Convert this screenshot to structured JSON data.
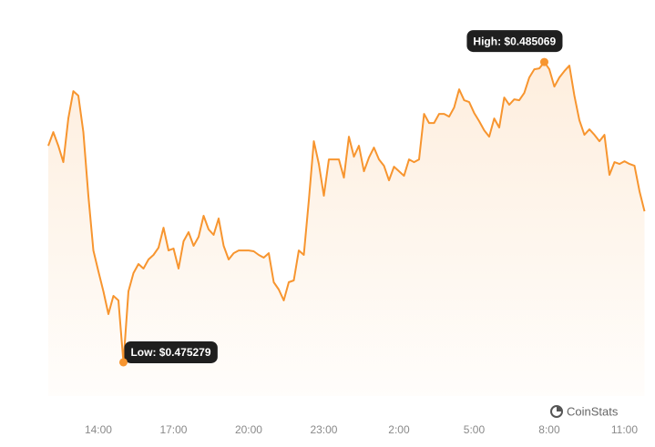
{
  "chart_data": {
    "type": "area",
    "x": [
      12.0,
      12.2,
      12.4,
      12.6,
      12.8,
      13.0,
      13.2,
      13.4,
      13.6,
      13.8,
      14.0,
      14.2,
      14.4,
      14.6,
      14.8,
      15.0,
      15.2,
      15.4,
      15.6,
      15.8,
      16.0,
      16.2,
      16.4,
      16.6,
      16.8,
      17.0,
      17.2,
      17.4,
      17.6,
      17.8,
      18.0,
      18.2,
      18.4,
      18.6,
      18.8,
      19.0,
      19.2,
      19.4,
      19.6,
      19.8,
      20.0,
      20.2,
      20.4,
      20.6,
      20.8,
      21.0,
      21.2,
      21.4,
      21.6,
      21.8,
      22.0,
      22.2,
      22.4,
      22.6,
      22.8,
      23.0,
      23.2,
      23.4,
      23.6,
      23.8,
      24.0,
      24.2,
      24.4,
      24.6,
      24.8,
      25.0,
      25.2,
      25.4,
      25.6,
      25.8,
      26.0,
      26.2,
      26.4,
      26.6,
      26.8,
      27.0,
      27.2,
      27.4,
      27.6,
      27.8,
      28.0,
      28.2,
      28.4,
      28.6,
      28.8,
      29.0,
      29.2,
      29.4,
      29.6,
      29.8,
      30.0,
      30.2,
      30.4,
      30.6,
      30.8,
      31.0,
      31.2,
      31.4,
      31.6,
      31.8,
      32.0,
      32.2,
      32.4,
      32.6,
      32.8,
      33.0,
      33.2,
      33.4,
      33.6,
      33.8,
      34.0,
      34.2,
      34.4,
      34.6,
      34.8,
      35.0,
      35.2,
      35.4,
      35.6,
      35.8
    ],
    "values": [
      0.482339,
      0.482784,
      0.482339,
      0.481805,
      0.483229,
      0.48412,
      0.483971,
      0.482784,
      0.480708,
      0.478927,
      0.478245,
      0.477592,
      0.47685,
      0.477444,
      0.477296,
      0.475279,
      0.477592,
      0.478186,
      0.478482,
      0.478334,
      0.478631,
      0.478779,
      0.479016,
      0.479669,
      0.478927,
      0.478987,
      0.478334,
      0.479224,
      0.479521,
      0.479076,
      0.479372,
      0.480055,
      0.47961,
      0.479432,
      0.479966,
      0.479076,
      0.478631,
      0.478838,
      0.478927,
      0.478927,
      0.478927,
      0.478898,
      0.478779,
      0.47869,
      0.478838,
      0.477889,
      0.477652,
      0.477296,
      0.477889,
      0.477948,
      0.478927,
      0.478779,
      0.480559,
      0.482488,
      0.481746,
      0.480708,
      0.481894,
      0.481894,
      0.481894,
      0.481301,
      0.482636,
      0.481983,
      0.482339,
      0.481509,
      0.481954,
      0.48228,
      0.481894,
      0.481687,
      0.481212,
      0.481657,
      0.481509,
      0.48136,
      0.481894,
      0.481805,
      0.481894,
      0.483378,
      0.483081,
      0.483081,
      0.483378,
      0.483378,
      0.483289,
      0.483586,
      0.484179,
      0.483823,
      0.483764,
      0.483408,
      0.48314,
      0.482844,
      0.482636,
      0.483229,
      0.482933,
      0.483912,
      0.483675,
      0.483853,
      0.483823,
      0.48406,
      0.484565,
      0.484832,
      0.484861,
      0.485069,
      0.484832,
      0.484268,
      0.484565,
      0.484772,
      0.48495,
      0.483971,
      0.48317,
      0.482695,
      0.482873,
      0.482695,
      0.482488,
      0.482695,
      0.48139,
      0.481805,
      0.481746,
      0.481835,
      0.481746,
      0.481687,
      0.480856,
      0.480203
    ],
    "color": "#f7952f",
    "xlim": [
      11.95,
      35.95
    ],
    "xticks": [
      {
        "value": 14,
        "label": "14:00"
      },
      {
        "value": 17,
        "label": "17:00"
      },
      {
        "value": 20,
        "label": "20:00"
      },
      {
        "value": 23,
        "label": "23:00"
      },
      {
        "value": 26,
        "label": "2:00"
      },
      {
        "value": 29,
        "label": "5:00"
      },
      {
        "value": 32,
        "label": "8:00"
      },
      {
        "value": 35,
        "label": "11:00"
      }
    ],
    "ylim": [
      0.47418,
      0.4862
    ],
    "annotations": {
      "high": "High: $0.485069",
      "low": "Low: $0.475279"
    },
    "watermark": "CoinStats"
  }
}
